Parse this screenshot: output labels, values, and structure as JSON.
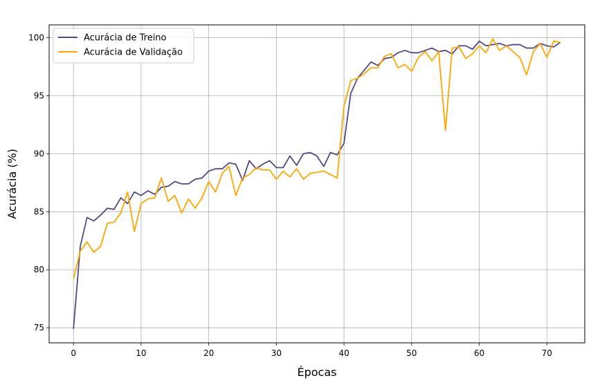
{
  "chart_data": {
    "type": "line",
    "title": "",
    "xlabel": "Épocas",
    "ylabel": "Acurácia (%)",
    "xlim": [
      -3.6,
      75.6
    ],
    "ylim": [
      73.7,
      101.1
    ],
    "xticks": [
      0,
      10,
      20,
      30,
      40,
      50,
      60,
      70
    ],
    "yticks": [
      75,
      80,
      85,
      90,
      95,
      100
    ],
    "grid": true,
    "legend_position": "upper-left",
    "series": [
      {
        "name": "Acurácia de Treino",
        "color": "#4f4a85",
        "x": [
          0,
          1,
          2,
          3,
          4,
          5,
          6,
          7,
          8,
          9,
          10,
          11,
          12,
          13,
          14,
          15,
          16,
          17,
          18,
          19,
          20,
          21,
          22,
          23,
          24,
          25,
          26,
          27,
          28,
          29,
          30,
          31,
          32,
          33,
          34,
          35,
          36,
          37,
          38,
          39,
          40,
          41,
          42,
          43,
          44,
          45,
          46,
          47,
          48,
          49,
          50,
          51,
          52,
          53,
          54,
          55,
          56,
          57,
          58,
          59,
          60,
          61,
          62,
          63,
          64,
          65,
          66,
          67,
          68,
          69,
          70,
          71,
          72
        ],
        "values": [
          74.9,
          82.0,
          84.5,
          84.2,
          84.7,
          85.3,
          85.2,
          86.2,
          85.7,
          86.7,
          86.4,
          86.8,
          86.5,
          87.1,
          87.2,
          87.6,
          87.4,
          87.4,
          87.8,
          87.9,
          88.5,
          88.7,
          88.7,
          89.2,
          89.1,
          87.7,
          89.4,
          88.7,
          89.1,
          89.4,
          88.8,
          88.8,
          89.8,
          89.0,
          90.0,
          90.1,
          89.8,
          88.9,
          90.1,
          89.9,
          90.9,
          95.2,
          96.5,
          97.2,
          97.9,
          97.6,
          98.2,
          98.3,
          98.7,
          98.9,
          98.7,
          98.7,
          98.9,
          99.1,
          98.8,
          98.9,
          98.6,
          99.3,
          99.3,
          99.0,
          99.7,
          99.3,
          99.4,
          99.5,
          99.3,
          99.4,
          99.4,
          99.1,
          99.1,
          99.5,
          99.3,
          99.2,
          99.6
        ]
      },
      {
        "name": "Acurácia de Validação",
        "color": "#ffa500",
        "x": [
          0,
          1,
          2,
          3,
          4,
          5,
          6,
          7,
          8,
          9,
          10,
          11,
          12,
          13,
          14,
          15,
          16,
          17,
          18,
          19,
          20,
          21,
          22,
          23,
          24,
          25,
          26,
          27,
          28,
          29,
          30,
          31,
          32,
          33,
          34,
          35,
          36,
          37,
          38,
          39,
          40,
          41,
          42,
          43,
          44,
          45,
          46,
          47,
          48,
          49,
          50,
          51,
          52,
          53,
          54,
          55,
          56,
          57,
          58,
          59,
          60,
          61,
          62,
          63,
          64,
          65,
          66,
          67,
          68,
          69,
          70,
          71,
          72
        ],
        "values": [
          79.2,
          81.6,
          82.4,
          81.5,
          82.0,
          84.0,
          84.1,
          84.9,
          86.7,
          83.3,
          85.7,
          86.1,
          86.2,
          87.9,
          85.9,
          86.4,
          84.9,
          86.1,
          85.3,
          86.2,
          87.6,
          86.7,
          88.3,
          88.9,
          86.4,
          87.9,
          88.2,
          88.8,
          88.6,
          88.6,
          87.8,
          88.5,
          88.0,
          88.7,
          87.8,
          88.3,
          88.4,
          88.5,
          88.2,
          87.9,
          94.1,
          96.3,
          96.5,
          96.9,
          97.4,
          97.4,
          98.4,
          98.6,
          97.4,
          97.7,
          97.1,
          98.3,
          98.8,
          98.0,
          98.8,
          92.0,
          99.1,
          99.2,
          98.2,
          98.6,
          99.3,
          98.7,
          99.9,
          98.9,
          99.3,
          98.8,
          98.3,
          96.8,
          98.8,
          99.5,
          98.3,
          99.7,
          99.6
        ]
      }
    ]
  }
}
